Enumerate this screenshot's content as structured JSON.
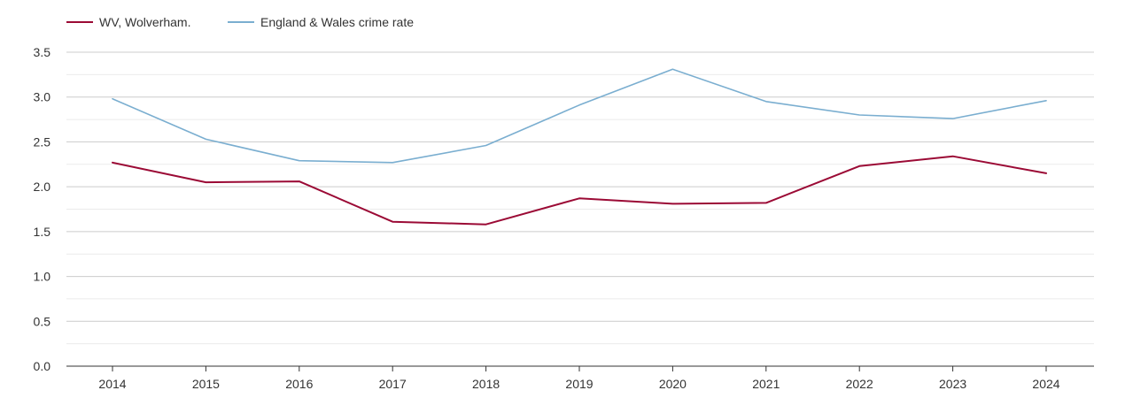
{
  "chart_data": {
    "type": "line",
    "title": "",
    "xlabel": "",
    "ylabel": "",
    "categories": [
      "2014",
      "2015",
      "2016",
      "2017",
      "2018",
      "2019",
      "2020",
      "2021",
      "2022",
      "2023",
      "2024"
    ],
    "ylim": [
      0,
      3.5
    ],
    "yticks": [
      "0.0",
      "0.5",
      "1.0",
      "1.5",
      "2.0",
      "2.5",
      "3.0",
      "3.5"
    ],
    "grid": true,
    "legend_position": "top-left",
    "series": [
      {
        "name": "WV, Wolverham.",
        "color": "#9b0a35",
        "values": [
          2.27,
          2.05,
          2.06,
          1.61,
          1.58,
          1.87,
          1.81,
          1.82,
          2.23,
          2.34,
          2.15
        ]
      },
      {
        "name": "England & Wales crime rate",
        "color": "#7aaed0",
        "values": [
          2.98,
          2.53,
          2.29,
          2.27,
          2.46,
          2.91,
          3.31,
          2.95,
          2.8,
          2.76,
          2.96
        ]
      }
    ]
  }
}
